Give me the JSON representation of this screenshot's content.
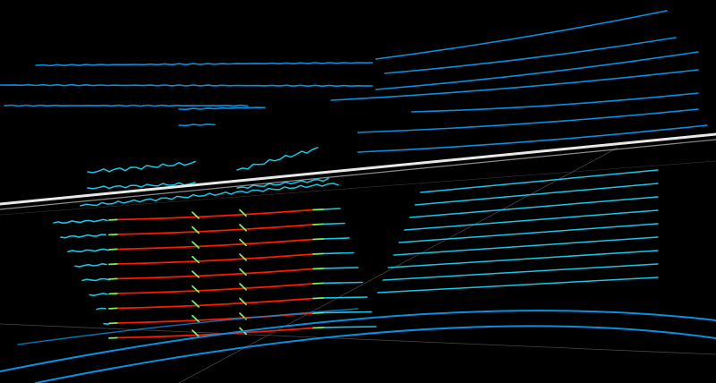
{
  "viewer": {
    "background": "#000000",
    "colors": {
      "far_scan": "#0a8fe0",
      "near_scan": "#19c6e6",
      "highlight": "#ff1a00",
      "transition": "#7ff05a",
      "ground_line": "#e8e8e8",
      "grid_line": "#555555"
    }
  }
}
